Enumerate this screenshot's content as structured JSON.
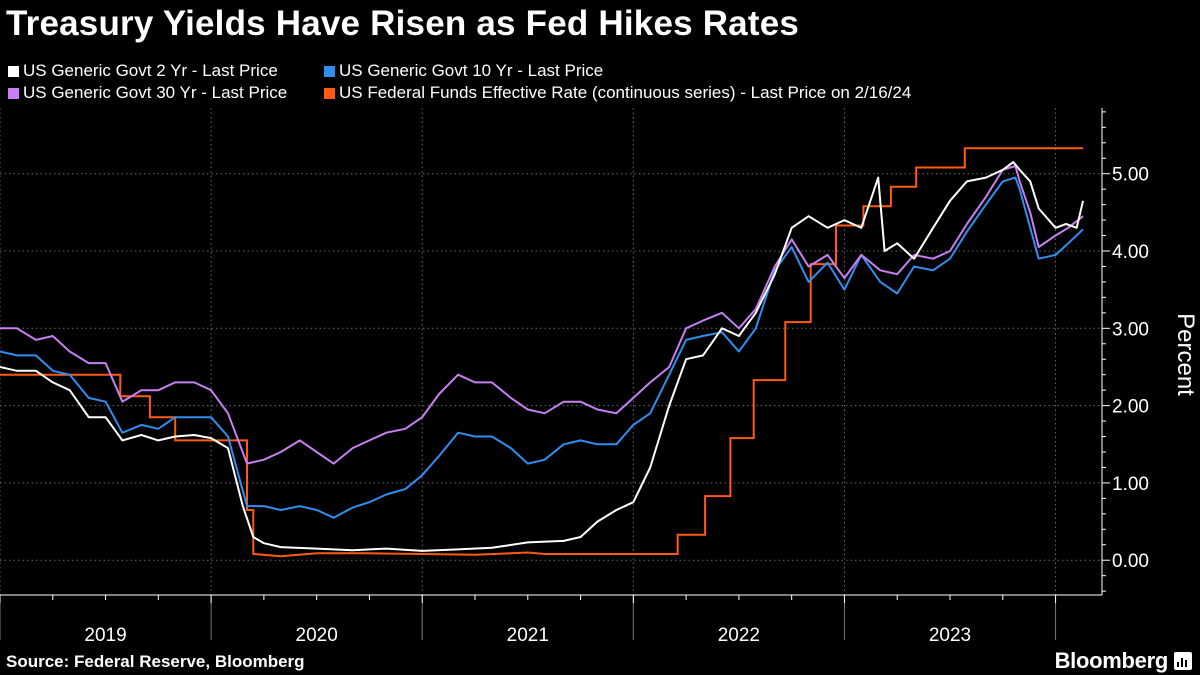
{
  "title": "Treasury Yields Have Risen as Fed Hikes Rates",
  "legend": [
    {
      "label": "US Generic Govt 2 Yr - Last Price",
      "color": "#ffffff"
    },
    {
      "label": "US Generic Govt 10 Yr - Last Price",
      "color": "#2f8ff0"
    },
    {
      "label": "US Generic Govt 30 Yr - Last Price",
      "color": "#c77ff2"
    },
    {
      "label": "US Federal Funds Effective Rate (continuous series) - Last Price on 2/16/24",
      "color": "#ff5a10"
    }
  ],
  "source": "Source: Federal Reserve, Bloomberg",
  "brand": "Bloomberg",
  "chart_data": {
    "type": "line",
    "title": "Treasury Yields Have Risen as Fed Hikes Rates",
    "xlabel": "",
    "ylabel": "Percent",
    "xlim": [
      2019.0,
      2024.22
    ],
    "ylim": [
      -0.45,
      5.85
    ],
    "y_ticks": [
      0,
      1,
      2,
      3,
      4,
      5
    ],
    "y_tick_labels": [
      "0.00",
      "1.00",
      "2.00",
      "3.00",
      "4.00",
      "5.00"
    ],
    "x_tick_labels": [
      {
        "label": "2019",
        "x": 2019.5
      },
      {
        "label": "2020",
        "x": 2020.5
      },
      {
        "label": "2021",
        "x": 2021.5
      },
      {
        "label": "2022",
        "x": 2022.5
      },
      {
        "label": "2023",
        "x": 2023.5
      }
    ],
    "x_gridlines": [
      2019.0,
      2020.0,
      2021.0,
      2022.0,
      2023.0,
      2024.0
    ],
    "series": [
      {
        "name": "US Generic Govt 2 Yr - Last Price",
        "color": "#ffffff",
        "step": false,
        "points": [
          [
            2019.0,
            2.5
          ],
          [
            2019.08,
            2.45
          ],
          [
            2019.17,
            2.45
          ],
          [
            2019.25,
            2.3
          ],
          [
            2019.33,
            2.2
          ],
          [
            2019.42,
            1.85
          ],
          [
            2019.5,
            1.85
          ],
          [
            2019.58,
            1.55
          ],
          [
            2019.67,
            1.62
          ],
          [
            2019.75,
            1.55
          ],
          [
            2019.83,
            1.6
          ],
          [
            2019.92,
            1.62
          ],
          [
            2020.0,
            1.58
          ],
          [
            2020.08,
            1.45
          ],
          [
            2020.15,
            0.7
          ],
          [
            2020.2,
            0.3
          ],
          [
            2020.25,
            0.22
          ],
          [
            2020.33,
            0.17
          ],
          [
            2020.5,
            0.15
          ],
          [
            2020.67,
            0.13
          ],
          [
            2020.83,
            0.15
          ],
          [
            2021.0,
            0.12
          ],
          [
            2021.17,
            0.14
          ],
          [
            2021.33,
            0.16
          ],
          [
            2021.5,
            0.23
          ],
          [
            2021.67,
            0.25
          ],
          [
            2021.75,
            0.3
          ],
          [
            2021.83,
            0.5
          ],
          [
            2021.92,
            0.65
          ],
          [
            2022.0,
            0.75
          ],
          [
            2022.08,
            1.2
          ],
          [
            2022.17,
            2.0
          ],
          [
            2022.25,
            2.6
          ],
          [
            2022.33,
            2.65
          ],
          [
            2022.42,
            3.0
          ],
          [
            2022.5,
            2.9
          ],
          [
            2022.58,
            3.2
          ],
          [
            2022.67,
            3.7
          ],
          [
            2022.75,
            4.3
          ],
          [
            2022.83,
            4.45
          ],
          [
            2022.92,
            4.3
          ],
          [
            2023.0,
            4.4
          ],
          [
            2023.08,
            4.3
          ],
          [
            2023.16,
            4.95
          ],
          [
            2023.19,
            4.0
          ],
          [
            2023.25,
            4.1
          ],
          [
            2023.33,
            3.9
          ],
          [
            2023.42,
            4.3
          ],
          [
            2023.5,
            4.65
          ],
          [
            2023.58,
            4.9
          ],
          [
            2023.67,
            4.95
          ],
          [
            2023.75,
            5.05
          ],
          [
            2023.8,
            5.15
          ],
          [
            2023.83,
            5.05
          ],
          [
            2023.88,
            4.9
          ],
          [
            2023.92,
            4.55
          ],
          [
            2024.0,
            4.3
          ],
          [
            2024.05,
            4.35
          ],
          [
            2024.1,
            4.3
          ],
          [
            2024.13,
            4.65
          ]
        ]
      },
      {
        "name": "US Generic Govt 10 Yr - Last Price",
        "color": "#2f8ff0",
        "step": false,
        "points": [
          [
            2019.0,
            2.7
          ],
          [
            2019.08,
            2.65
          ],
          [
            2019.17,
            2.65
          ],
          [
            2019.25,
            2.45
          ],
          [
            2019.33,
            2.4
          ],
          [
            2019.42,
            2.1
          ],
          [
            2019.5,
            2.05
          ],
          [
            2019.58,
            1.65
          ],
          [
            2019.67,
            1.75
          ],
          [
            2019.75,
            1.7
          ],
          [
            2019.83,
            1.85
          ],
          [
            2019.92,
            1.85
          ],
          [
            2020.0,
            1.85
          ],
          [
            2020.08,
            1.6
          ],
          [
            2020.17,
            0.7
          ],
          [
            2020.25,
            0.7
          ],
          [
            2020.33,
            0.65
          ],
          [
            2020.42,
            0.7
          ],
          [
            2020.5,
            0.65
          ],
          [
            2020.58,
            0.55
          ],
          [
            2020.67,
            0.68
          ],
          [
            2020.75,
            0.75
          ],
          [
            2020.83,
            0.85
          ],
          [
            2020.92,
            0.92
          ],
          [
            2021.0,
            1.1
          ],
          [
            2021.08,
            1.35
          ],
          [
            2021.17,
            1.65
          ],
          [
            2021.25,
            1.6
          ],
          [
            2021.33,
            1.6
          ],
          [
            2021.42,
            1.45
          ],
          [
            2021.5,
            1.25
          ],
          [
            2021.58,
            1.3
          ],
          [
            2021.67,
            1.5
          ],
          [
            2021.75,
            1.55
          ],
          [
            2021.83,
            1.5
          ],
          [
            2021.92,
            1.5
          ],
          [
            2022.0,
            1.75
          ],
          [
            2022.08,
            1.9
          ],
          [
            2022.17,
            2.4
          ],
          [
            2022.25,
            2.85
          ],
          [
            2022.33,
            2.9
          ],
          [
            2022.42,
            2.95
          ],
          [
            2022.5,
            2.7
          ],
          [
            2022.58,
            3.0
          ],
          [
            2022.67,
            3.75
          ],
          [
            2022.75,
            4.05
          ],
          [
            2022.83,
            3.6
          ],
          [
            2022.92,
            3.85
          ],
          [
            2023.0,
            3.5
          ],
          [
            2023.08,
            3.95
          ],
          [
            2023.17,
            3.6
          ],
          [
            2023.25,
            3.45
          ],
          [
            2023.33,
            3.8
          ],
          [
            2023.42,
            3.75
          ],
          [
            2023.5,
            3.9
          ],
          [
            2023.58,
            4.25
          ],
          [
            2023.67,
            4.6
          ],
          [
            2023.75,
            4.9
          ],
          [
            2023.81,
            4.95
          ],
          [
            2023.83,
            4.8
          ],
          [
            2023.88,
            4.3
          ],
          [
            2023.92,
            3.9
          ],
          [
            2024.0,
            3.95
          ],
          [
            2024.06,
            4.1
          ],
          [
            2024.13,
            4.28
          ]
        ]
      },
      {
        "name": "US Generic Govt 30 Yr - Last Price",
        "color": "#c77ff2",
        "step": false,
        "points": [
          [
            2019.0,
            3.0
          ],
          [
            2019.08,
            3.0
          ],
          [
            2019.17,
            2.85
          ],
          [
            2019.25,
            2.9
          ],
          [
            2019.33,
            2.7
          ],
          [
            2019.42,
            2.55
          ],
          [
            2019.5,
            2.55
          ],
          [
            2019.58,
            2.05
          ],
          [
            2019.67,
            2.2
          ],
          [
            2019.75,
            2.2
          ],
          [
            2019.83,
            2.3
          ],
          [
            2019.92,
            2.3
          ],
          [
            2020.0,
            2.2
          ],
          [
            2020.08,
            1.9
          ],
          [
            2020.17,
            1.25
          ],
          [
            2020.25,
            1.3
          ],
          [
            2020.33,
            1.4
          ],
          [
            2020.42,
            1.55
          ],
          [
            2020.5,
            1.4
          ],
          [
            2020.58,
            1.25
          ],
          [
            2020.67,
            1.45
          ],
          [
            2020.75,
            1.55
          ],
          [
            2020.83,
            1.65
          ],
          [
            2020.92,
            1.7
          ],
          [
            2021.0,
            1.85
          ],
          [
            2021.08,
            2.15
          ],
          [
            2021.17,
            2.4
          ],
          [
            2021.25,
            2.3
          ],
          [
            2021.33,
            2.3
          ],
          [
            2021.42,
            2.1
          ],
          [
            2021.5,
            1.95
          ],
          [
            2021.58,
            1.9
          ],
          [
            2021.67,
            2.05
          ],
          [
            2021.75,
            2.05
          ],
          [
            2021.83,
            1.95
          ],
          [
            2021.92,
            1.9
          ],
          [
            2022.0,
            2.1
          ],
          [
            2022.08,
            2.3
          ],
          [
            2022.17,
            2.5
          ],
          [
            2022.25,
            3.0
          ],
          [
            2022.33,
            3.1
          ],
          [
            2022.42,
            3.2
          ],
          [
            2022.5,
            3.0
          ],
          [
            2022.58,
            3.25
          ],
          [
            2022.67,
            3.8
          ],
          [
            2022.75,
            4.15
          ],
          [
            2022.83,
            3.8
          ],
          [
            2022.92,
            3.95
          ],
          [
            2023.0,
            3.65
          ],
          [
            2023.08,
            3.95
          ],
          [
            2023.17,
            3.75
          ],
          [
            2023.25,
            3.7
          ],
          [
            2023.33,
            3.95
          ],
          [
            2023.42,
            3.9
          ],
          [
            2023.5,
            4.0
          ],
          [
            2023.58,
            4.35
          ],
          [
            2023.67,
            4.7
          ],
          [
            2023.75,
            5.05
          ],
          [
            2023.81,
            5.1
          ],
          [
            2023.83,
            4.9
          ],
          [
            2023.88,
            4.5
          ],
          [
            2023.92,
            4.05
          ],
          [
            2024.0,
            4.2
          ],
          [
            2024.06,
            4.3
          ],
          [
            2024.13,
            4.45
          ]
        ]
      },
      {
        "name": "US Federal Funds Effective Rate (continuous series) - Last Price on 2/16/24",
        "color": "#ff5a10",
        "step": true,
        "points": [
          [
            2019.0,
            2.4
          ],
          [
            2019.57,
            2.4
          ],
          [
            2019.57,
            2.12
          ],
          [
            2019.71,
            2.12
          ],
          [
            2019.71,
            1.85
          ],
          [
            2019.83,
            1.85
          ],
          [
            2019.83,
            1.55
          ],
          [
            2020.17,
            1.55
          ],
          [
            2020.17,
            0.65
          ],
          [
            2020.2,
            0.65
          ],
          [
            2020.2,
            0.08
          ],
          [
            2020.33,
            0.05
          ],
          [
            2020.5,
            0.09
          ],
          [
            2020.75,
            0.09
          ],
          [
            2021.0,
            0.08
          ],
          [
            2021.25,
            0.07
          ],
          [
            2021.5,
            0.1
          ],
          [
            2021.58,
            0.08
          ],
          [
            2022.21,
            0.08
          ],
          [
            2022.21,
            0.33
          ],
          [
            2022.34,
            0.33
          ],
          [
            2022.34,
            0.83
          ],
          [
            2022.46,
            0.83
          ],
          [
            2022.46,
            1.58
          ],
          [
            2022.57,
            1.58
          ],
          [
            2022.57,
            2.33
          ],
          [
            2022.72,
            2.33
          ],
          [
            2022.72,
            3.08
          ],
          [
            2022.84,
            3.08
          ],
          [
            2022.84,
            3.83
          ],
          [
            2022.96,
            3.83
          ],
          [
            2022.96,
            4.33
          ],
          [
            2023.09,
            4.33
          ],
          [
            2023.09,
            4.58
          ],
          [
            2023.22,
            4.58
          ],
          [
            2023.22,
            4.83
          ],
          [
            2023.34,
            4.83
          ],
          [
            2023.34,
            5.08
          ],
          [
            2023.57,
            5.08
          ],
          [
            2023.57,
            5.33
          ],
          [
            2024.13,
            5.33
          ]
        ]
      }
    ]
  }
}
